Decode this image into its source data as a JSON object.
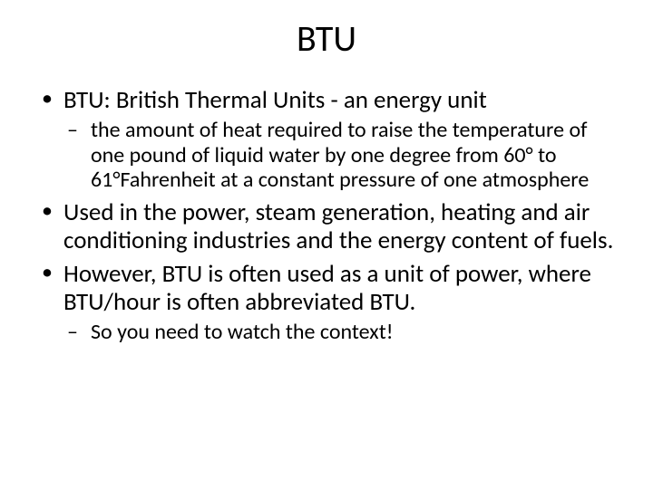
{
  "title": "BTU",
  "bullets": [
    {
      "text": "BTU: British Thermal Units - an energy unit",
      "sub": [
        "the amount of heat required to raise the temperature of one pound of liquid water by one degree from 60° to 61°Fahrenheit at a constant pressure of one atmosphere"
      ]
    },
    {
      "text": "Used in the power, steam generation, heating and air conditioning industries and the energy content of fuels.",
      "sub": []
    },
    {
      "text": "However, BTU is often used as a unit of power, where BTU/hour is often abbreviated BTU.",
      "sub": [
        "So you need to watch the context!"
      ]
    }
  ],
  "styling": {
    "background_color": "#ffffff",
    "text_color": "#000000",
    "title_fontsize": 40,
    "level1_fontsize": 27,
    "level2_fontsize": 24,
    "font_family": "Calibri, Arial, sans-serif"
  }
}
